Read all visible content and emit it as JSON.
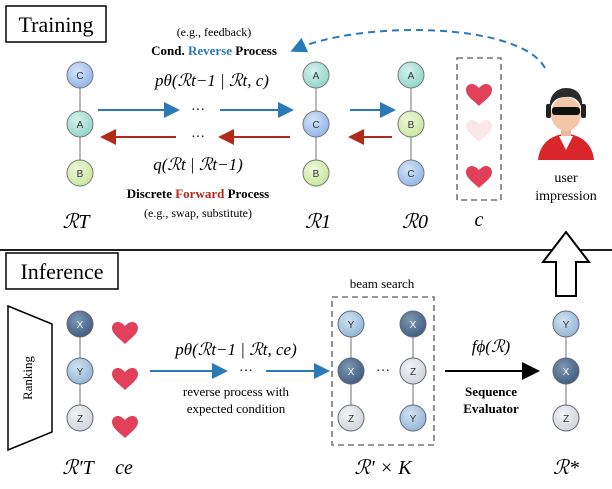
{
  "training": {
    "section_label": "Training",
    "feedback_note": "(e.g., feedback)",
    "reverse_title_prefix": "Cond. ",
    "reverse_title_highlight": "Reverse",
    "reverse_title_suffix": " Process",
    "reverse_formula": "pθ(ℛt−1 | ℛt, c)",
    "forward_formula": "q(ℛt | ℛt−1)",
    "forward_title_prefix": "Discrete ",
    "forward_title_highlight": "Forward",
    "forward_title_suffix": " Process",
    "forward_note": "(e.g., swap, substitute)",
    "ellipsis": "···",
    "col_T": {
      "label": "ℛT",
      "nodes": [
        "C",
        "A",
        "B"
      ]
    },
    "col_1": {
      "label": "ℛ1",
      "nodes": [
        "A",
        "C",
        "B"
      ]
    },
    "col_0": {
      "label": "ℛ0",
      "nodes": [
        "A",
        "B",
        "C"
      ]
    },
    "condition_label": "c",
    "user_label_line1": "user",
    "user_label_line2": "impression"
  },
  "inference": {
    "section_label": "Inference",
    "ranking_label": "Ranking",
    "col_T_prime": {
      "label": "ℛ′T",
      "nodes": [
        "X",
        "Y",
        "Z"
      ]
    },
    "ce_label": "ce",
    "reverse_formula": "pθ(ℛt−1 | ℛt, ce)",
    "reverse_desc_line1": "reverse process with",
    "reverse_desc_line2": "expected condition",
    "beam_title": "beam search",
    "beam_left_nodes": [
      "Y",
      "X",
      "Z"
    ],
    "beam_right_nodes": [
      "X",
      "Z",
      "Y"
    ],
    "beam_label": "ℛ′ × K",
    "ellipsis": "···",
    "evaluator_formula": "fϕ(ℛ)",
    "evaluator_line1": "Sequence",
    "evaluator_line2": "Evaluator",
    "final_nodes": [
      "Y",
      "X",
      "Z"
    ],
    "final_label": "ℛ*"
  },
  "colors": {
    "reverse_blue": "#2a7ab8",
    "forward_red": "#b22a1a",
    "heart_red": "#e0405a",
    "heart_faint": "#fbe6ea",
    "node_A_fill": "#a9e0d6",
    "node_B_fill": "#d9efb6",
    "node_C_fill": "#a9c6f0",
    "node_X_fill": "#4f6d8f",
    "node_Y_fill": "#a9c6e2",
    "node_Z_fill": "#dcdfe3",
    "stroke_gray": "#888888"
  },
  "icons": [
    "heart-icon",
    "user-avatar-icon",
    "up-arrow-icon",
    "ranking-trapezoid-icon"
  ]
}
